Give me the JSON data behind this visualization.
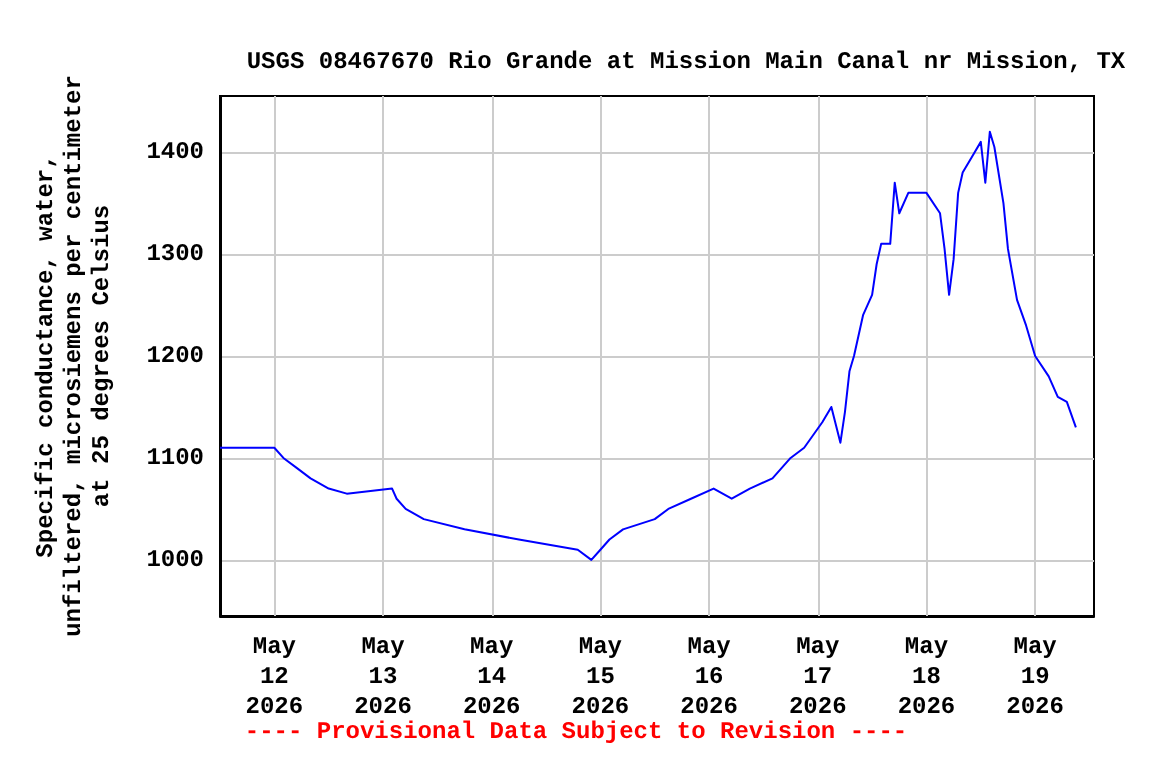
{
  "chart_data": {
    "type": "line",
    "title": "USGS 08467670 Rio Grande at Mission Main Canal nr Mission, TX",
    "ylabel": "Specific conductance, water,\nunfiltered, microsiemens per centimeter\nat 25 degrees Celsius",
    "annotations": [
      "---- Provisional Data Subject to Revision ----"
    ],
    "x": [
      "2026-05-11T12:00",
      "2026-05-12T00:00",
      "2026-05-12T02:00",
      "2026-05-12T05:00",
      "2026-05-12T08:00",
      "2026-05-12T12:00",
      "2026-05-12T16:00",
      "2026-05-13T02:00",
      "2026-05-13T03:00",
      "2026-05-13T05:00",
      "2026-05-13T09:00",
      "2026-05-13T18:00",
      "2026-05-14T06:00",
      "2026-05-14T19:00",
      "2026-05-14T22:00",
      "2026-05-15T00:00",
      "2026-05-15T02:00",
      "2026-05-15T05:00",
      "2026-05-15T12:00",
      "2026-05-15T15:00",
      "2026-05-15T20:00",
      "2026-05-16T01:00",
      "2026-05-16T05:00",
      "2026-05-16T09:00",
      "2026-05-16T14:00",
      "2026-05-16T18:00",
      "2026-05-16T21:00",
      "2026-05-17T01:00",
      "2026-05-17T03:00",
      "2026-05-17T05:00",
      "2026-05-17T06:00",
      "2026-05-17T07:00",
      "2026-05-17T08:00",
      "2026-05-17T10:00",
      "2026-05-17T12:00",
      "2026-05-17T13:00",
      "2026-05-17T14:00",
      "2026-05-17T16:00",
      "2026-05-17T17:00",
      "2026-05-17T18:00",
      "2026-05-17T20:00",
      "2026-05-18T00:00",
      "2026-05-18T03:00",
      "2026-05-18T04:00",
      "2026-05-18T05:00",
      "2026-05-18T06:00",
      "2026-05-18T07:00",
      "2026-05-18T08:00",
      "2026-05-18T10:00",
      "2026-05-18T12:00",
      "2026-05-18T13:00",
      "2026-05-18T14:00",
      "2026-05-18T15:00",
      "2026-05-18T17:00",
      "2026-05-18T18:00",
      "2026-05-18T20:00",
      "2026-05-18T22:00",
      "2026-05-19T00:00",
      "2026-05-19T03:00",
      "2026-05-19T05:00",
      "2026-05-19T07:00",
      "2026-05-19T09:00"
    ],
    "series": [
      {
        "color": "#0000ff",
        "values": [
          1110,
          1110,
          1100,
          1090,
          1080,
          1070,
          1065,
          1070,
          1060,
          1050,
          1040,
          1030,
          1020,
          1010,
          1000,
          1010,
          1020,
          1030,
          1040,
          1050,
          1060,
          1070,
          1060,
          1070,
          1080,
          1100,
          1110,
          1135,
          1150,
          1115,
          1145,
          1185,
          1200,
          1240,
          1260,
          1290,
          1310,
          1310,
          1370,
          1340,
          1360,
          1360,
          1340,
          1305,
          1260,
          1295,
          1360,
          1380,
          1395,
          1410,
          1370,
          1420,
          1405,
          1350,
          1305,
          1255,
          1230,
          1200,
          1180,
          1160,
          1155,
          1130
        ]
      }
    ],
    "xlim": [
      "2026-05-11T12:00",
      "2026-05-19T13:00"
    ],
    "xticks": [
      {
        "value": "2026-05-12",
        "label": "May\n12\n2026"
      },
      {
        "value": "2026-05-13",
        "label": "May\n13\n2026"
      },
      {
        "value": "2026-05-14",
        "label": "May\n14\n2026"
      },
      {
        "value": "2026-05-15",
        "label": "May\n15\n2026"
      },
      {
        "value": "2026-05-16",
        "label": "May\n16\n2026"
      },
      {
        "value": "2026-05-17",
        "label": "May\n17\n2026"
      },
      {
        "value": "2026-05-18",
        "label": "May\n18\n2026"
      },
      {
        "value": "2026-05-19",
        "label": "May\n19\n2026"
      }
    ],
    "ylim": [
      945,
      1455
    ],
    "yticks": [
      1000,
      1100,
      1200,
      1300,
      1400
    ],
    "grid": true
  }
}
